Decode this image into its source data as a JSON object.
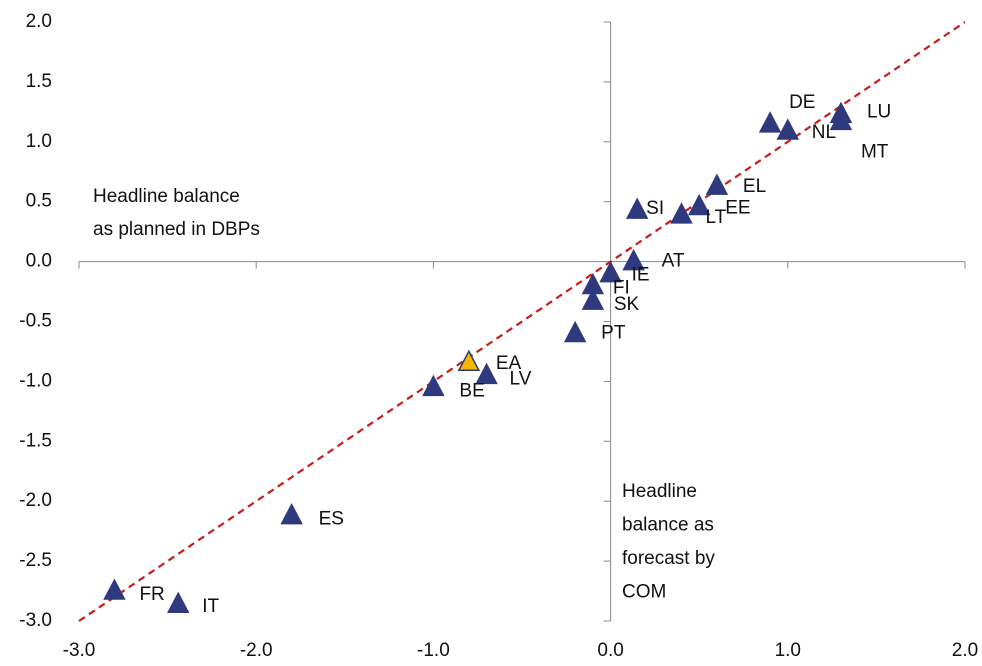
{
  "chart_data": {
    "type": "scatter",
    "annotations": {
      "planned": [
        "Headline balance",
        "as planned in DBPs"
      ],
      "forecast": [
        "Headline",
        "balance as",
        "forecast by",
        "COM"
      ]
    },
    "points": [
      "DE",
      "NL",
      "LU",
      "MT",
      "EL",
      "EE",
      "LT",
      "SI",
      "AT",
      "IE",
      "FI",
      "SK",
      "PT",
      "EA",
      "LV",
      "BE",
      "ES",
      "FR",
      "IT"
    ],
    "x": [
      0.9,
      1.0,
      1.3,
      1.3,
      0.6,
      0.5,
      0.4,
      0.15,
      0.13,
      0.0,
      -0.1,
      -0.1,
      -0.2,
      -0.8,
      -0.7,
      -1.0,
      -1.8,
      -2.8,
      -2.44
    ],
    "y": [
      1.15,
      1.09,
      1.23,
      1.17,
      0.63,
      0.46,
      0.39,
      0.43,
      0.0,
      -0.1,
      -0.2,
      -0.33,
      -0.6,
      -0.84,
      -0.95,
      -1.05,
      -2.12,
      -2.75,
      -2.86
    ],
    "colors": [
      "#2f3a7e",
      "#2f3a7e",
      "#2f3a7e",
      "#2f3a7e",
      "#2f3a7e",
      "#2f3a7e",
      "#2f3a7e",
      "#2f3a7e",
      "#2f3a7e",
      "#2f3a7e",
      "#2f3a7e",
      "#2f3a7e",
      "#2f3a7e",
      "#f5b800",
      "#2f3a7e",
      "#2f3a7e",
      "#2f3a7e",
      "#2f3a7e",
      "#2f3a7e"
    ],
    "reference_line": {
      "x": [
        -3,
        2
      ],
      "y": [
        -3,
        2
      ],
      "color": "#cc1a1a"
    },
    "xlim": [
      -3,
      2
    ],
    "ylim": [
      -3,
      2
    ],
    "xticks": [
      {
        "value": -3,
        "label": "-3.0"
      },
      {
        "value": -2,
        "label": "-2.0"
      },
      {
        "value": -1,
        "label": "-1.0"
      },
      {
        "value": 0,
        "label": "0.0"
      },
      {
        "value": 1,
        "label": "1.0"
      },
      {
        "value": 2,
        "label": "2.0"
      }
    ],
    "yticks": [
      {
        "value": 2,
        "label": "2.0"
      },
      {
        "value": 1.5,
        "label": "1.5"
      },
      {
        "value": 1,
        "label": "1.0"
      },
      {
        "value": 0.5,
        "label": "0.5"
      },
      {
        "value": 0,
        "label": "0.0"
      },
      {
        "value": -0.5,
        "label": "-0.5"
      },
      {
        "value": -1,
        "label": "-1.0"
      },
      {
        "value": -1.5,
        "label": "-1.5"
      },
      {
        "value": -2,
        "label": "-2.0"
      },
      {
        "value": -2.5,
        "label": "-2.5"
      },
      {
        "value": -3,
        "label": "-3.0"
      }
    ]
  }
}
